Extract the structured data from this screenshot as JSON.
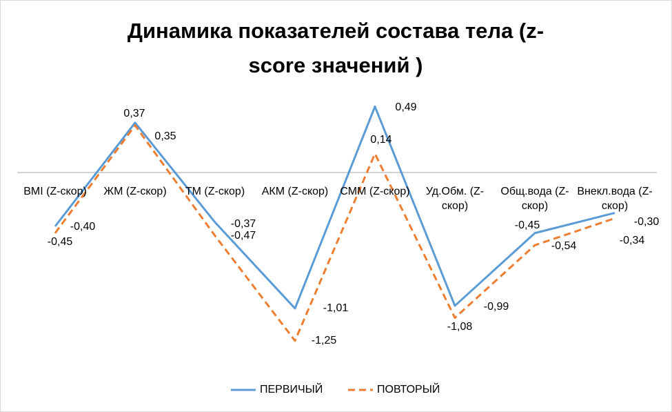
{
  "chart_data": {
    "type": "line",
    "title": "Динамика показателей состава тела (z-score значений )",
    "categories": [
      "BMI (Z-скор)",
      "ЖМ (Z-скор)",
      "ТМ (Z-скор)",
      "АКМ (Z-скор)",
      "СММ (Z-скор)",
      "Уд.Обм. (Z-скор)",
      "Общ.вода (Z-скор)",
      "Внекл.вода (Z-скор)"
    ],
    "series": [
      {
        "name": "ПЕРВИЧЫЙ",
        "color": "#5b9bd5",
        "dashed": false,
        "values": [
          -0.4,
          0.37,
          -0.37,
          -1.01,
          0.49,
          -0.99,
          -0.45,
          -0.3
        ],
        "value_labels": [
          "-0,40",
          "0,37",
          "-0,37",
          "-1,01",
          "0,49",
          "-0,99",
          "-0,45",
          "-0,30"
        ]
      },
      {
        "name": "ПОВТОРЫЙ",
        "color": "#ed7d31",
        "dashed": true,
        "values": [
          -0.45,
          0.35,
          -0.47,
          -1.25,
          0.14,
          -1.08,
          -0.54,
          -0.34
        ],
        "value_labels": [
          "-0,45",
          "0,35",
          "-0,47",
          "-1,25",
          "0,14",
          "-1,08",
          "-0,54",
          "-0,34"
        ]
      }
    ],
    "legend": "bottom"
  }
}
